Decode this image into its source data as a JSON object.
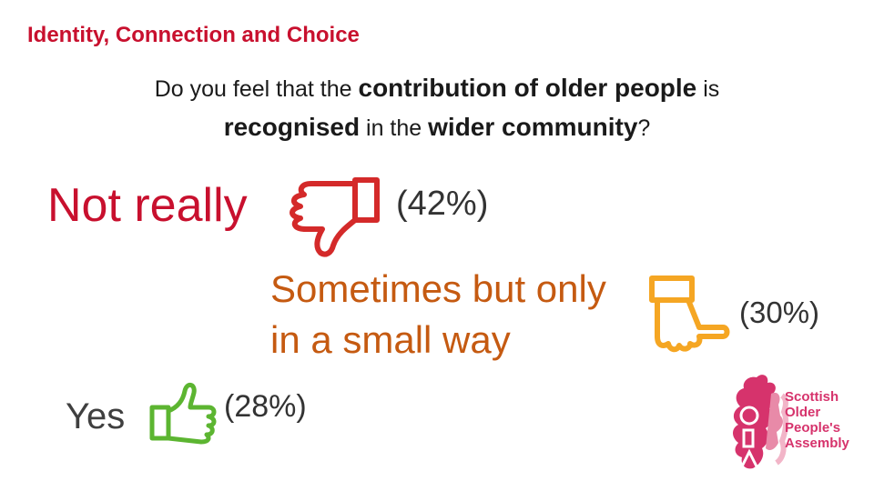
{
  "title": "Identity, Connection and Choice",
  "question": {
    "line1_plain1": "Do you feel that the ",
    "line1_bold": "contribution of older people",
    "line1_plain2": " is",
    "line2_bold1": "recognised",
    "line2_plain1": " in the ",
    "line2_bold2": "wider community",
    "line2_plain2": "?"
  },
  "responses": {
    "not_really": {
      "label": "Not really",
      "percent": "(42%)",
      "icon": "thumbs-down-icon",
      "color": "#c8102e"
    },
    "sometimes": {
      "label_line1": "Sometimes but only",
      "label_line2": "in a small way",
      "percent": "(30%)",
      "icon": "thumb-sideways-icon",
      "color": "#c55a11"
    },
    "yes": {
      "label": "Yes",
      "percent": "(28%)",
      "icon": "thumbs-up-icon",
      "color": "#3f3f3f"
    }
  },
  "icon_colors": {
    "down": "#d42a2a",
    "side": "#f5a623",
    "up": "#5cb531"
  },
  "colors": {
    "title": "#c8102e",
    "percent": "#333333"
  },
  "logo": {
    "line1": "Scottish",
    "line2": "Older",
    "line3": "People's",
    "line4": "Assembly",
    "color": "#d6336c"
  }
}
